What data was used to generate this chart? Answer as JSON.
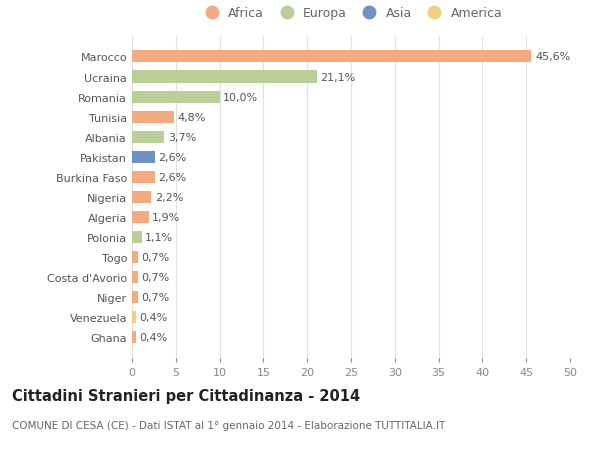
{
  "countries": [
    "Marocco",
    "Ucraina",
    "Romania",
    "Tunisia",
    "Albania",
    "Pakistan",
    "Burkina Faso",
    "Nigeria",
    "Algeria",
    "Polonia",
    "Togo",
    "Costa d'Avorio",
    "Niger",
    "Venezuela",
    "Ghana"
  ],
  "values": [
    45.6,
    21.1,
    10.0,
    4.8,
    3.7,
    2.6,
    2.6,
    2.2,
    1.9,
    1.1,
    0.7,
    0.7,
    0.7,
    0.4,
    0.4
  ],
  "labels": [
    "45,6%",
    "21,1%",
    "10,0%",
    "4,8%",
    "3,7%",
    "2,6%",
    "2,6%",
    "2,2%",
    "1,9%",
    "1,1%",
    "0,7%",
    "0,7%",
    "0,7%",
    "0,4%",
    "0,4%"
  ],
  "continents": [
    "Africa",
    "Europa",
    "Europa",
    "Africa",
    "Europa",
    "Asia",
    "Africa",
    "Africa",
    "Africa",
    "Europa",
    "Africa",
    "Africa",
    "Africa",
    "America",
    "Africa"
  ],
  "colors": {
    "Africa": "#F2AA7E",
    "Europa": "#BACF96",
    "Asia": "#7090C8",
    "America": "#F0D080"
  },
  "xlim": [
    0,
    50
  ],
  "xticks": [
    0,
    5,
    10,
    15,
    20,
    25,
    30,
    35,
    40,
    45,
    50
  ],
  "title": "Cittadini Stranieri per Cittadinanza - 2014",
  "subtitle": "COMUNE DI CESA (CE) - Dati ISTAT al 1° gennaio 2014 - Elaborazione TUTTITALIA.IT",
  "background_color": "#ffffff",
  "grid_color": "#e0e0e0",
  "bar_height": 0.6,
  "label_fontsize": 8.0,
  "tick_fontsize": 8.0,
  "title_fontsize": 10.5,
  "subtitle_fontsize": 7.5,
  "legend_order": [
    "Africa",
    "Europa",
    "Asia",
    "America"
  ]
}
